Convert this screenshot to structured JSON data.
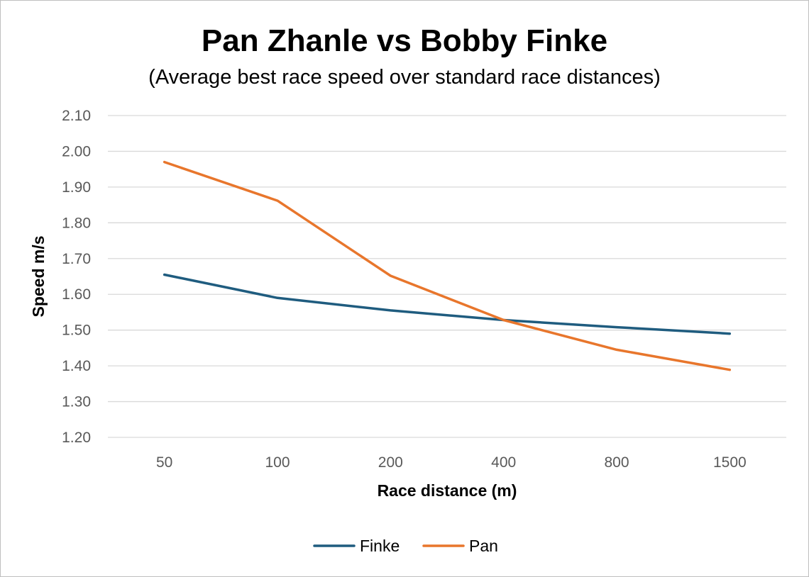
{
  "chart_data": {
    "type": "line",
    "title": "Pan Zhanle vs Bobby Finke",
    "subtitle": "(Average best race speed over standard race distances)",
    "xlabel": "Race distance (m)",
    "ylabel": "Speed m/s",
    "categories": [
      "50",
      "100",
      "200",
      "400",
      "800",
      "1500"
    ],
    "ylim": [
      1.2,
      2.1
    ],
    "yticks": [
      "2.10",
      "2.00",
      "1.90",
      "1.80",
      "1.70",
      "1.60",
      "1.50",
      "1.40",
      "1.30",
      "1.20"
    ],
    "grid": true,
    "legend_position": "bottom",
    "series": [
      {
        "name": "Finke",
        "color": "#1f5c7f",
        "values": [
          1.655,
          1.59,
          1.555,
          1.528,
          1.508,
          1.49
        ]
      },
      {
        "name": "Pan",
        "color": "#e8762c",
        "values": [
          1.97,
          1.862,
          1.652,
          1.528,
          1.445,
          1.389
        ]
      }
    ]
  }
}
